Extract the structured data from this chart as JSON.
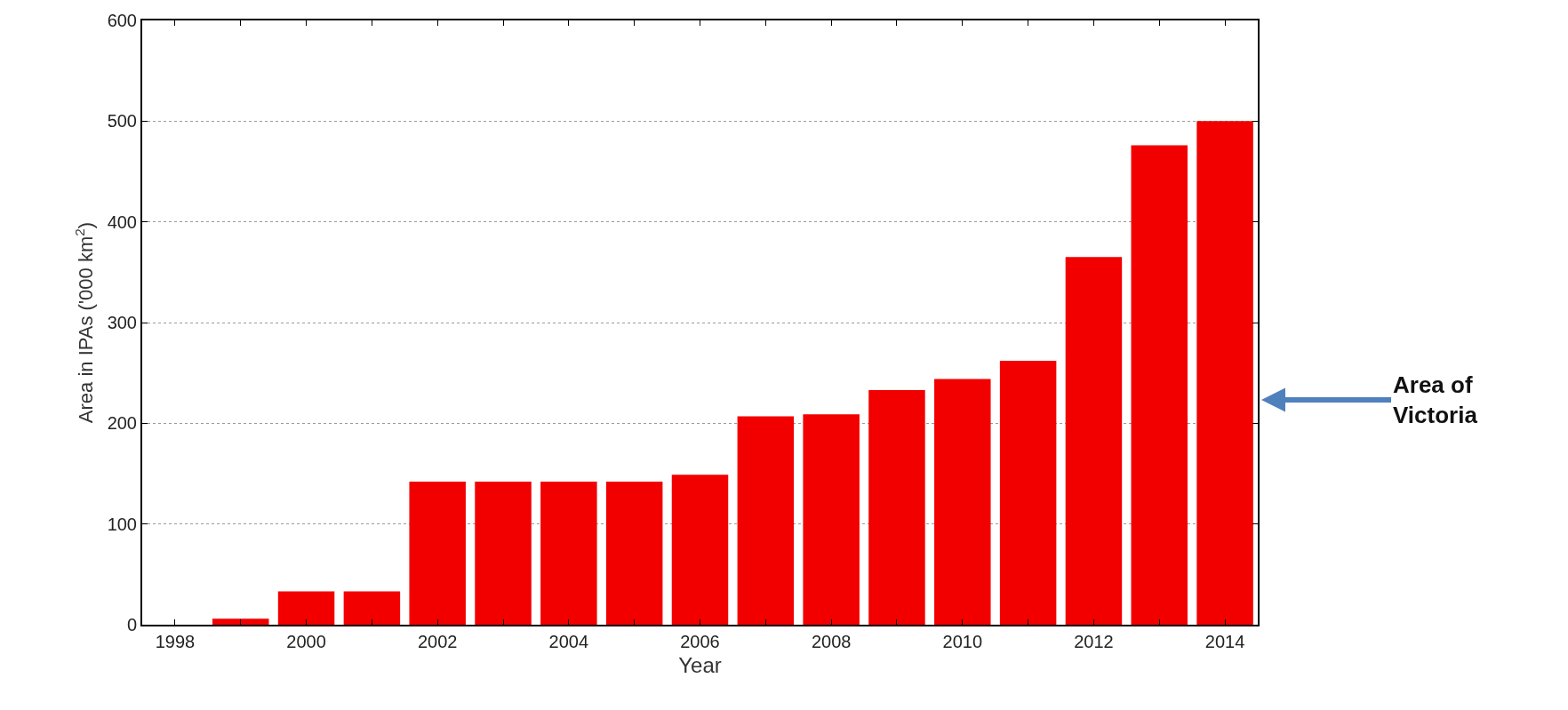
{
  "chart_data": {
    "type": "bar",
    "x": [
      1998,
      1999,
      2000,
      2001,
      2002,
      2003,
      2004,
      2005,
      2006,
      2007,
      2008,
      2009,
      2010,
      2011,
      2012,
      2013,
      2014
    ],
    "values": [
      0,
      6,
      33,
      33,
      142,
      142,
      142,
      142,
      149,
      207,
      209,
      233,
      244,
      262,
      365,
      476,
      500
    ],
    "color": "#f20000",
    "xlabel": "Year",
    "ylabel": "Area in IPAs ('000 km$^{2}$)",
    "xlim": [
      1997.5,
      2014.5
    ],
    "xticks": [
      1998,
      {
        "value": 1999,
        "label": null
      },
      2000,
      {
        "value": 2001,
        "label": null
      },
      2002,
      {
        "value": 2003,
        "label": null
      },
      2004,
      {
        "value": 2005,
        "label": null
      },
      2006,
      {
        "value": 2007,
        "label": null
      },
      2008,
      {
        "value": 2009,
        "label": null
      },
      2010,
      {
        "value": 2011,
        "label": null
      },
      2012,
      {
        "value": 2013,
        "label": null
      },
      2014
    ],
    "ylim": [
      0,
      600
    ],
    "yticks": [
      0,
      100,
      200,
      300,
      400,
      500,
      600
    ],
    "grid": "y",
    "annotations": [
      "Area of Victoria"
    ]
  }
}
